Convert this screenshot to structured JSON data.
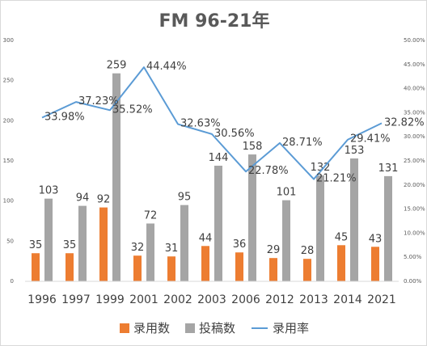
{
  "chart_data": {
    "type": "bar",
    "title": "FM 96-21年",
    "categories": [
      "1996",
      "1997",
      "1999",
      "2001",
      "2002",
      "2003",
      "2006",
      "2012",
      "2013",
      "2014",
      "2021"
    ],
    "series": [
      {
        "name": "录用数",
        "type": "bar",
        "axis": "left",
        "color": "#ED7D31",
        "values": [
          35,
          35,
          92,
          32,
          31,
          44,
          36,
          29,
          28,
          45,
          43
        ]
      },
      {
        "name": "投稿数",
        "type": "bar",
        "axis": "left",
        "color": "#A5A5A5",
        "values": [
          103,
          94,
          259,
          72,
          95,
          144,
          158,
          101,
          132,
          153,
          131
        ]
      },
      {
        "name": "录用率",
        "type": "line",
        "axis": "right",
        "color": "#5B9BD5",
        "values": [
          33.98,
          37.23,
          35.52,
          44.44,
          32.63,
          30.56,
          22.78,
          28.71,
          21.21,
          29.41,
          32.82
        ],
        "labels": [
          "33.98%",
          "37.23%",
          "35.52%",
          "44.44%",
          "32.63%",
          "30.56%",
          "22.78%",
          "28.71%",
          "21.21%",
          "29.41%",
          "32.82%"
        ]
      }
    ],
    "ylim_left": [
      0,
      300
    ],
    "yticks_left": [
      "0",
      "50",
      "100",
      "150",
      "200",
      "250",
      "300"
    ],
    "ylim_right": [
      0,
      50
    ],
    "yticks_right": [
      "0.00%",
      "5.00%",
      "10.00%",
      "15.00%",
      "20.00%",
      "25.00%",
      "30.00%",
      "35.00%",
      "40.00%",
      "45.00%",
      "50.00%"
    ],
    "grid": false,
    "legend": "bottom"
  }
}
